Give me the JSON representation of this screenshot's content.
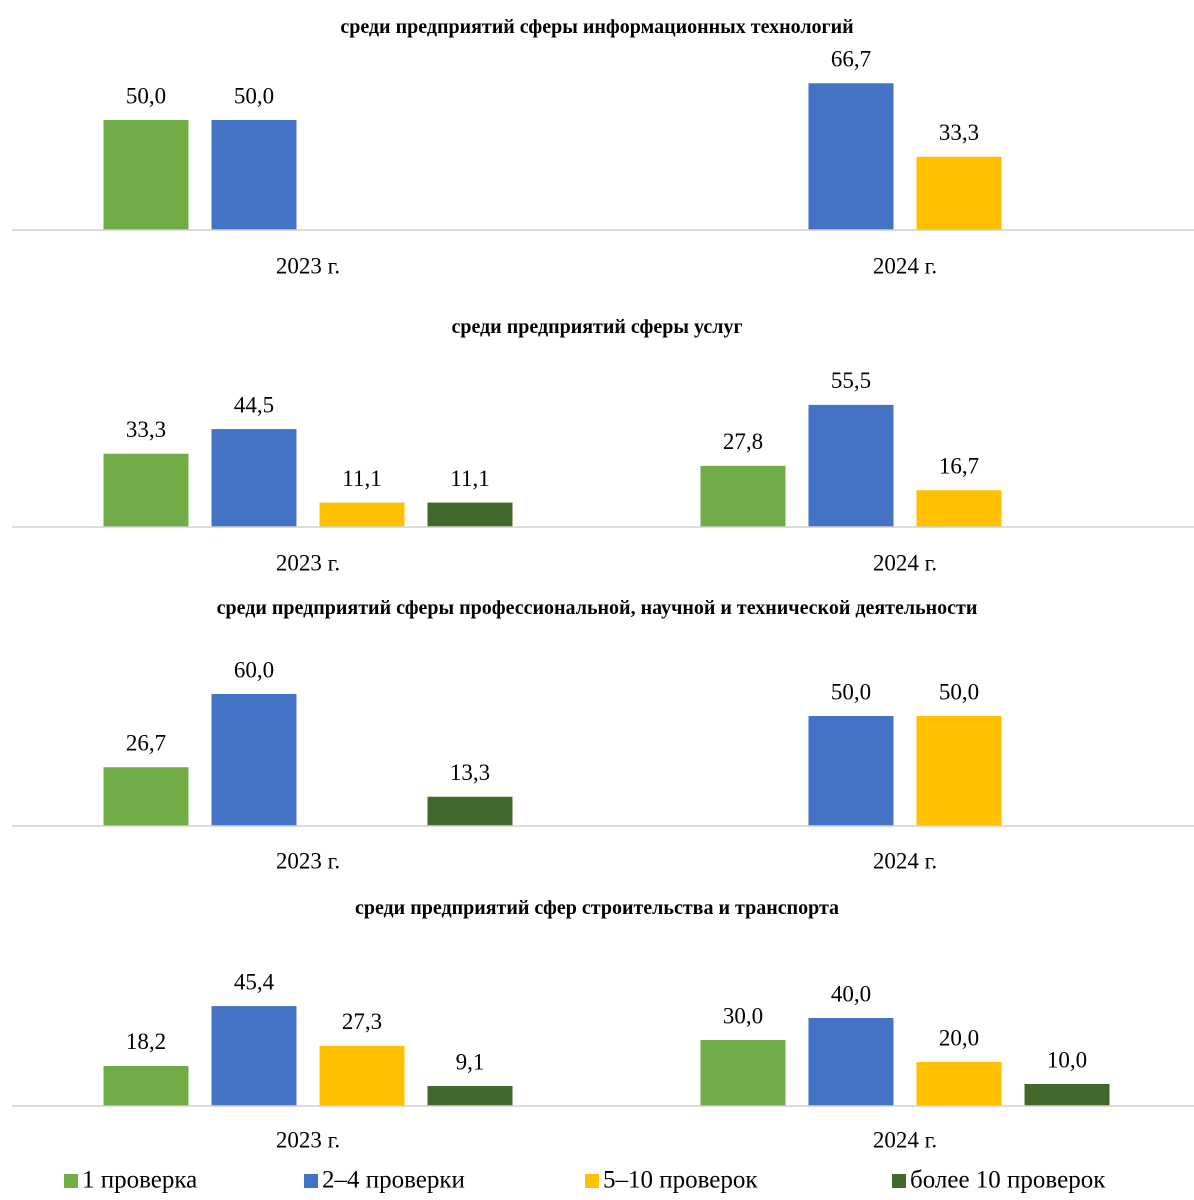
{
  "legend": [
    {
      "name": "1 проверка",
      "color": "#70ad47"
    },
    {
      "name": "2–4 проверки",
      "color": "#4472c4"
    },
    {
      "name": "5–10 проверок",
      "color": "#ffc000"
    },
    {
      "name": "более 10 проверок",
      "color": "#43682b"
    }
  ],
  "chart_data": [
    {
      "type": "bar",
      "title": "среди предприятий сферы информационных технологий",
      "categories": [
        "2023 г.",
        "2024 г."
      ],
      "ylim": [
        0,
        70
      ],
      "series": [
        {
          "values": [
            50,
            null
          ],
          "value_labels": [
            "50,0",
            null
          ]
        },
        {
          "values": [
            50,
            66.7
          ],
          "value_labels": [
            "50,0",
            "66,7"
          ]
        },
        {
          "values": [
            null,
            33.3
          ],
          "value_labels": [
            null,
            "33,3"
          ]
        },
        {
          "values": [
            null,
            null
          ],
          "value_labels": [
            null,
            null
          ]
        }
      ]
    },
    {
      "type": "bar",
      "title": "среди предприятий сферы услуг",
      "categories": [
        "2023 г.",
        "2024 г."
      ],
      "ylim": [
        0,
        70
      ],
      "series": [
        {
          "values": [
            33.3,
            27.8
          ],
          "value_labels": [
            "33,3",
            "27,8"
          ]
        },
        {
          "values": [
            44.5,
            55.5
          ],
          "value_labels": [
            "44,5",
            "55,5"
          ]
        },
        {
          "values": [
            11.1,
            16.7
          ],
          "value_labels": [
            "11,1",
            "16,7"
          ]
        },
        {
          "values": [
            11.1,
            null
          ],
          "value_labels": [
            "11,1",
            null
          ]
        }
      ]
    },
    {
      "type": "bar",
      "title": "среди предприятий сферы профессиональной, научной и технической деятельности",
      "categories": [
        "2023 г.",
        "2024 г."
      ],
      "ylim": [
        0,
        70
      ],
      "series": [
        {
          "values": [
            26.7,
            null
          ],
          "value_labels": [
            "26,7",
            null
          ]
        },
        {
          "values": [
            60,
            50
          ],
          "value_labels": [
            "60,0",
            "50,0"
          ]
        },
        {
          "values": [
            null,
            50
          ],
          "value_labels": [
            null,
            "50,0"
          ]
        },
        {
          "values": [
            13.3,
            null
          ],
          "value_labels": [
            "13,3",
            null
          ]
        }
      ]
    },
    {
      "type": "bar",
      "title": "среди предприятий сфер строительства и транспорта",
      "categories": [
        "2023 г.",
        "2024 г."
      ],
      "ylim": [
        0,
        70
      ],
      "series": [
        {
          "values": [
            18.2,
            30
          ],
          "value_labels": [
            "18,2",
            "30,0"
          ]
        },
        {
          "values": [
            45.4,
            40
          ],
          "value_labels": [
            "45,4",
            "40,0"
          ]
        },
        {
          "values": [
            27.3,
            20
          ],
          "value_labels": [
            "27,3",
            "20,0"
          ]
        },
        {
          "values": [
            9.1,
            10
          ],
          "value_labels": [
            "9,1",
            "10,0"
          ]
        }
      ]
    }
  ]
}
